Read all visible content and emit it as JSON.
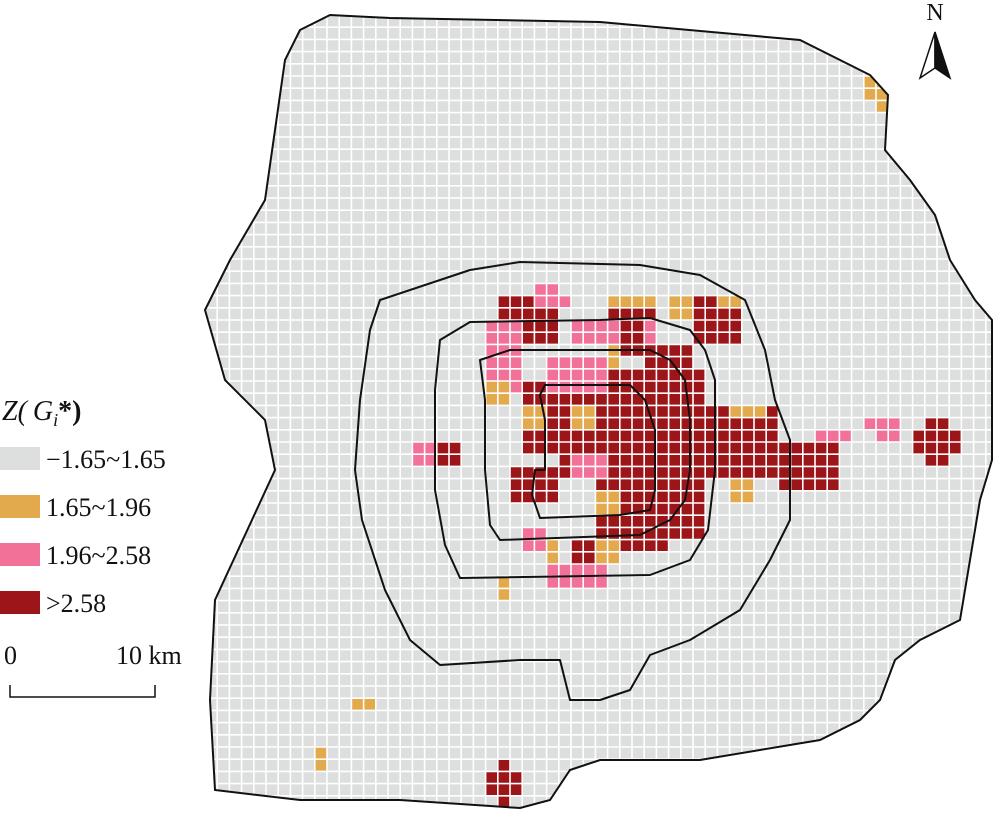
{
  "north": "N",
  "legend": {
    "title": [
      "Z(",
      "G",
      "i",
      "*)"
    ],
    "items": [
      {
        "label": "−1.65~1.65",
        "color": "#dcdfdd"
      },
      {
        "label": "1.65~1.96",
        "color": "#e2aa4c"
      },
      {
        "label": "1.96~2.58",
        "color": "#f27199"
      },
      {
        "label": ">2.58",
        "color": "#9c1519"
      }
    ]
  },
  "scale": {
    "start": "0",
    "end": "10 km"
  }
}
